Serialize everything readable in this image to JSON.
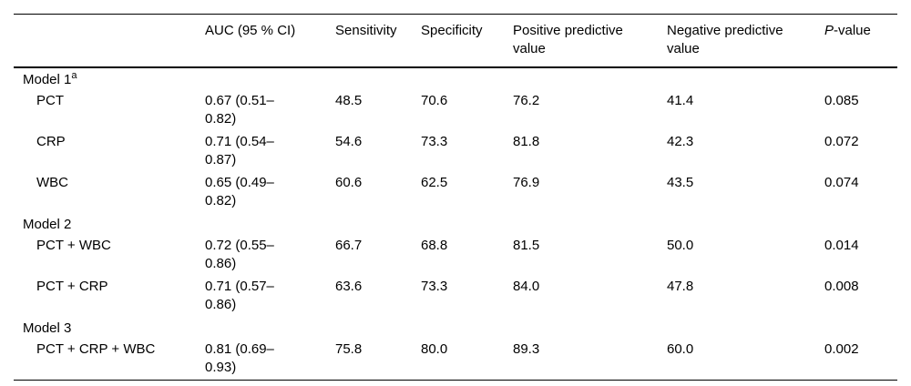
{
  "colors": {
    "background": "#ffffff",
    "text": "#000000",
    "rule": "#000000"
  },
  "table": {
    "header": {
      "label": "",
      "auc": "AUC (95 % CI)",
      "sensitivity": "Sensitivity",
      "specificity": "Specificity",
      "ppv": "Positive predictive value",
      "npv": "Negative predictive value",
      "pvalue_italic": "P",
      "pvalue_rest": "-value"
    },
    "rows": [
      {
        "type": "group",
        "label": "Model 1",
        "sup": "a"
      },
      {
        "type": "data",
        "label": "PCT",
        "auc": [
          "0.67 (0.51–",
          "0.82)"
        ],
        "sensitivity": "48.5",
        "specificity": "70.6",
        "ppv": "76.2",
        "npv": "41.4",
        "pvalue": "0.085"
      },
      {
        "type": "data",
        "label": "CRP",
        "auc": [
          "0.71 (0.54–",
          "0.87)"
        ],
        "sensitivity": "54.6",
        "specificity": "73.3",
        "ppv": "81.8",
        "npv": "42.3",
        "pvalue": "0.072"
      },
      {
        "type": "data",
        "label": "WBC",
        "auc": [
          "0.65 (0.49–",
          "0.82)"
        ],
        "sensitivity": "60.6",
        "specificity": "62.5",
        "ppv": "76.9",
        "npv": "43.5",
        "pvalue": "0.074"
      },
      {
        "type": "group",
        "label": "Model 2",
        "sup": ""
      },
      {
        "type": "data",
        "label": "PCT + WBC",
        "auc": [
          "0.72 (0.55–",
          "0.86)"
        ],
        "sensitivity": "66.7",
        "specificity": "68.8",
        "ppv": "81.5",
        "npv": "50.0",
        "pvalue": "0.014"
      },
      {
        "type": "data",
        "label": "PCT + CRP",
        "auc": [
          "0.71 (0.57–",
          "0.86)"
        ],
        "sensitivity": "63.6",
        "specificity": "73.3",
        "ppv": "84.0",
        "npv": "47.8",
        "pvalue": "0.008"
      },
      {
        "type": "group",
        "label": "Model 3",
        "sup": ""
      },
      {
        "type": "data",
        "label": "PCT + CRP + WBC",
        "auc": [
          "0.81 (0.69–",
          "0.93)"
        ],
        "sensitivity": "75.8",
        "specificity": "80.0",
        "ppv": "89.3",
        "npv": "60.0",
        "pvalue": "0.002"
      }
    ]
  }
}
